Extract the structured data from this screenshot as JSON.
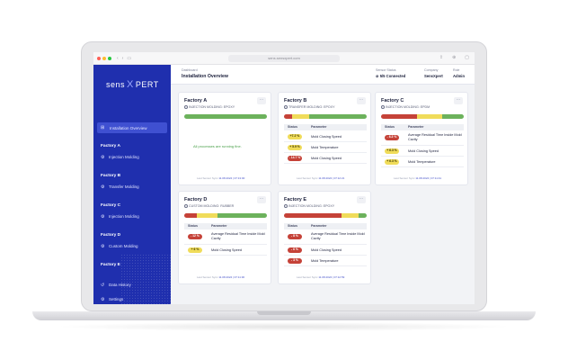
{
  "browser": {
    "url": "sens.sensxpert.com"
  },
  "sidebar": {
    "logo_left": "sens",
    "logo_x": "X",
    "logo_right": "PERT",
    "active_label": "Installation Overview",
    "factories": [
      {
        "name": "Factory A",
        "sub": "Injection Molding"
      },
      {
        "name": "Factory B",
        "sub": "Transfer Molding"
      },
      {
        "name": "Factory C",
        "sub": "Injection Molding"
      },
      {
        "name": "Factory D",
        "sub": "Custom Molding"
      },
      {
        "name": "Factory E"
      }
    ],
    "bottom_items": [
      "Data History",
      "Settings"
    ]
  },
  "header": {
    "breadcrumb": "Dashboard",
    "title": "Installation Overview",
    "connection_label": "Sensor Status",
    "connection_value": "5/5 Connected",
    "company_label": "Company",
    "company_value": "SensXpert",
    "role_label": "Role",
    "role_value": "Admin"
  },
  "colors": {
    "red": "#c54238",
    "yellow": "#f0dc5a",
    "green": "#6cb25c",
    "brand": "#1f2fae"
  },
  "cards": {
    "a": {
      "title": "Factory A",
      "subtitle": "INJECTION MOLDING: EPOXY",
      "message": "All processes are running fine.",
      "last_label": "Last Sensor Sync",
      "last_value": "11.08.2024 | 07:13:00",
      "bar": [
        0,
        0,
        1
      ]
    },
    "b": {
      "title": "Factory B",
      "subtitle": "TRANSFER MOLDING: EPOXY",
      "col_status": "Status",
      "col_param": "Parameter",
      "rows": [
        {
          "badge": "+7.2 %",
          "param": "Mold Closing Speed",
          "color": "yellow"
        },
        {
          "badge": "+ 5.9 %",
          "param": "Mold Temperature",
          "color": "yellow"
        },
        {
          "badge": "- 14.7 %",
          "param": "Mold Closing Speed",
          "color": "red"
        }
      ],
      "last_label": "Last Sensor Sync",
      "last_value": "11.08.2024 | 07:12:21",
      "bar": [
        0.1,
        0.2,
        0.7
      ]
    },
    "c": {
      "title": "Factory C",
      "subtitle": "INJECTION MOLDING: EPDM",
      "col_status": "Status",
      "col_param": "Parameter",
      "rows": [
        {
          "badge": "- 6.3 %",
          "param": "Average Residual Time Inside Mold Cavity",
          "color": "red"
        },
        {
          "badge": "+ 6.3 %",
          "param": "Mold Closing Speed",
          "color": "yellow"
        },
        {
          "badge": "+ 6.3 %",
          "param": "Mold Temperature",
          "color": "yellow"
        }
      ],
      "last_label": "Last Sensor Sync",
      "last_value": "11.08.2024 | 07:11:41",
      "bar": [
        0.44,
        0.3,
        0.26
      ]
    },
    "d": {
      "title": "Factory D",
      "subtitle": "CUSTOM MOLDING: RUBBER",
      "col_status": "Status",
      "col_param": "Parameter",
      "rows": [
        {
          "badge": "- 12 %",
          "param": "Average Residual Time Inside Mold Cavity",
          "color": "red"
        },
        {
          "badge": "+ 6 %",
          "param": "Mold Closing Speed",
          "color": "yellow"
        }
      ],
      "last_label": "Last Sensor Sync",
      "last_value": "11.08.2024 | 07:11:30",
      "bar": [
        0.15,
        0.25,
        0.6
      ]
    },
    "e": {
      "title": "Factory E",
      "subtitle": "INJECTION MOLDING: EPOXY",
      "col_status": "Status",
      "col_param": "Parameter",
      "rows": [
        {
          "badge": "- 8 %",
          "param": "Average Residual Time Inside Mold Cavity",
          "color": "red"
        },
        {
          "badge": "- 6 %",
          "param": "Mold Closing Speed",
          "color": "red"
        },
        {
          "badge": "- 3 %",
          "param": "Mold Temperature",
          "color": "red"
        }
      ],
      "last_label": "Last Sensor Sync",
      "last_value": "11.08.2024 | 07:12:59",
      "bar": [
        0.7,
        0.2,
        0.1
      ]
    }
  }
}
